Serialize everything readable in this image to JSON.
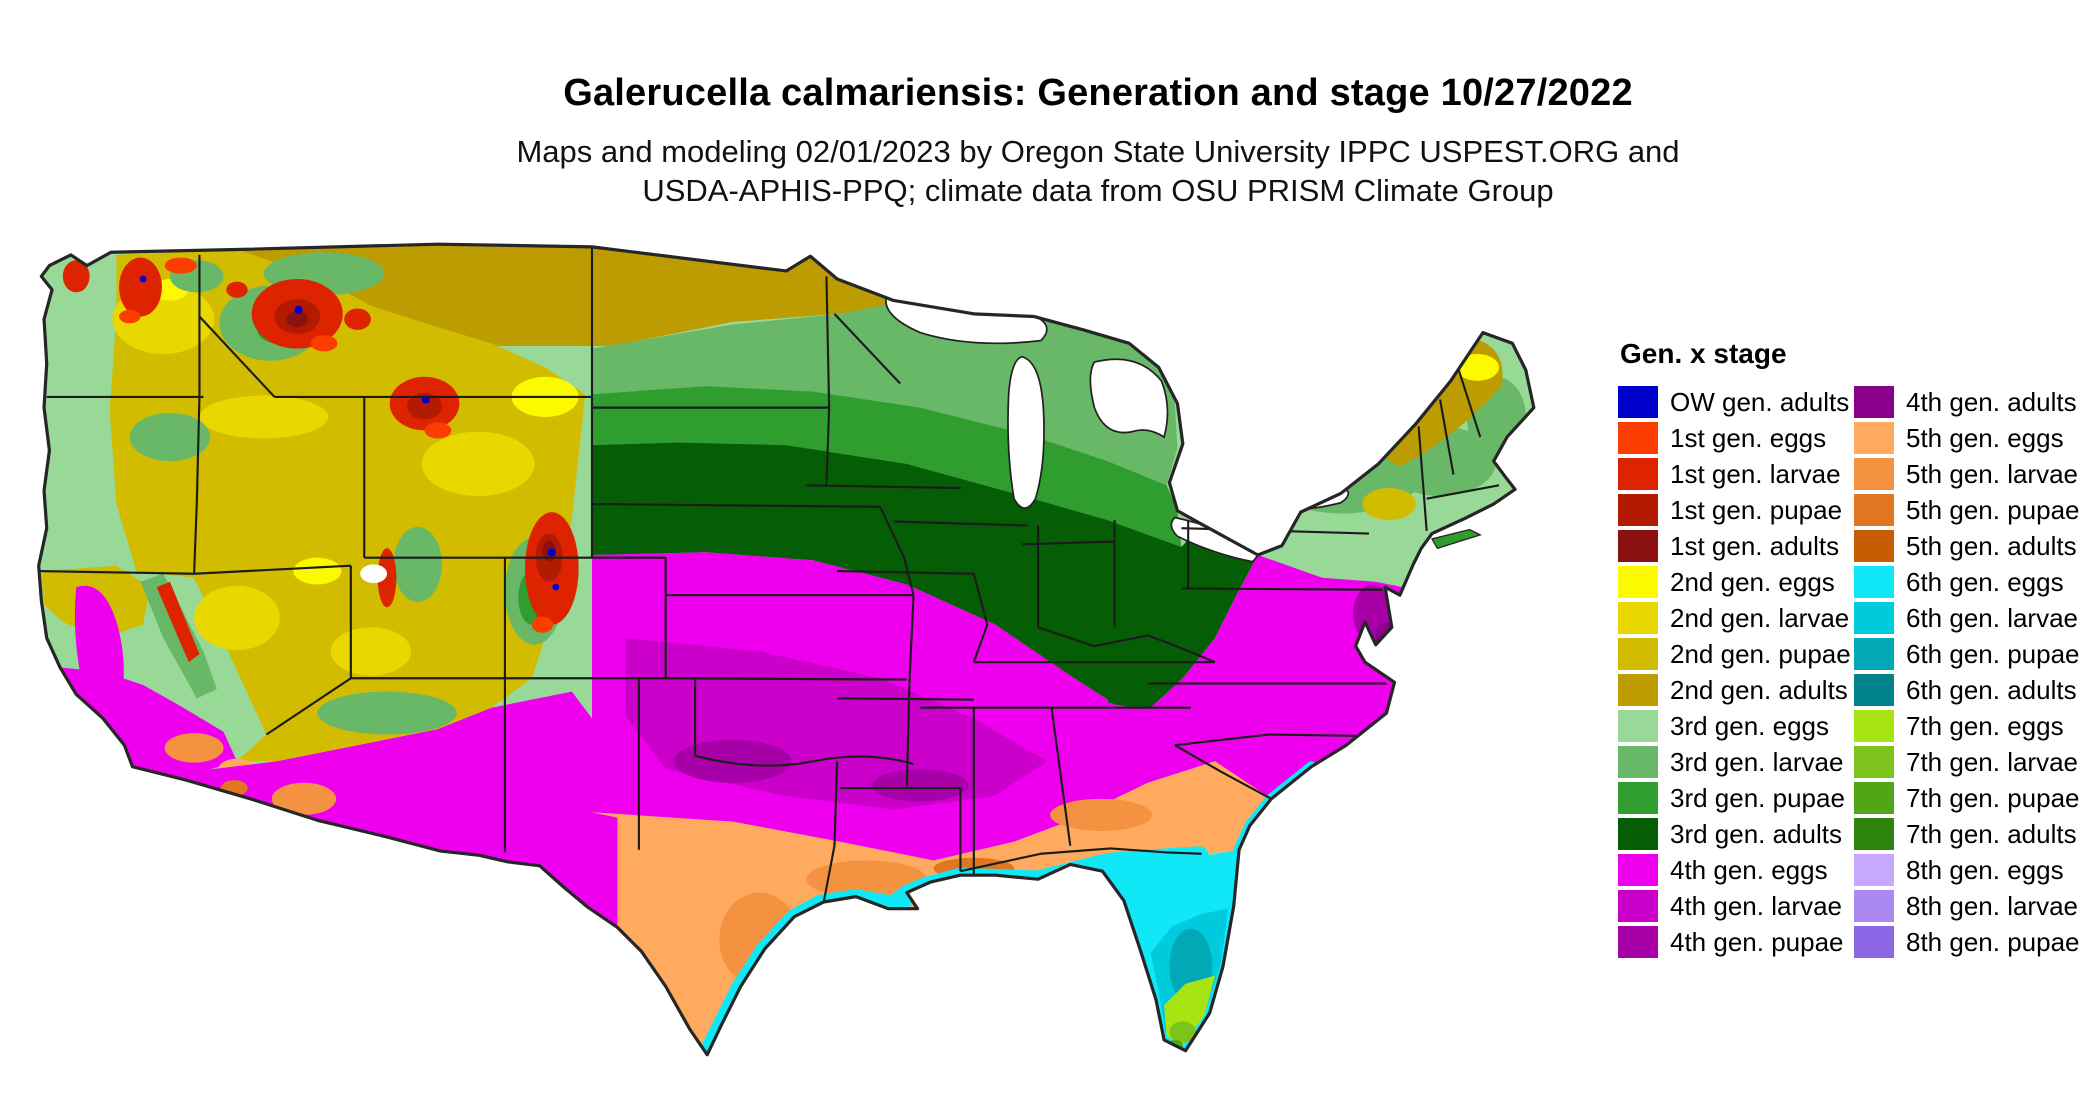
{
  "header": {
    "title": "Galerucella calmariensis: Generation and stage 10/27/2022",
    "subtitle_line1": "Maps and modeling 02/01/2023 by Oregon State University IPPC USPEST.ORG and",
    "subtitle_line2": "USDA-APHIS-PPQ; climate data from OSU PRISM Climate Group"
  },
  "legend": {
    "title": "Gen. x stage",
    "columns": [
      {
        "entries": [
          {
            "id": "ow_adults",
            "label": "OW gen. adults",
            "color": "#0000cc"
          },
          {
            "id": "g1_eggs",
            "label": "1st gen. eggs",
            "color": "#fb3d00"
          },
          {
            "id": "g1_larvae",
            "label": "1st gen. larvae",
            "color": "#dd2300"
          },
          {
            "id": "g1_pupae",
            "label": "1st gen. pupae",
            "color": "#b21b00"
          },
          {
            "id": "g1_adults",
            "label": "1st gen. adults",
            "color": "#8c1111"
          },
          {
            "id": "g2_eggs",
            "label": "2nd gen. eggs",
            "color": "#fdf900"
          },
          {
            "id": "g2_larvae",
            "label": "2nd gen. larvae",
            "color": "#e8d800"
          },
          {
            "id": "g2_pupae",
            "label": "2nd gen. pupae",
            "color": "#d2bc00"
          },
          {
            "id": "g2_adults",
            "label": "2nd gen. adults",
            "color": "#bc9c00"
          },
          {
            "id": "g3_eggs",
            "label": "3rd gen. eggs",
            "color": "#98d998"
          },
          {
            "id": "g3_larvae",
            "label": "3rd gen. larvae",
            "color": "#68b868"
          },
          {
            "id": "g3_pupae",
            "label": "3rd gen. pupae",
            "color": "#2f9e2f"
          },
          {
            "id": "g3_adults",
            "label": "3rd gen. adults",
            "color": "#055e05"
          },
          {
            "id": "g4_eggs",
            "label": "4th gen. eggs",
            "color": "#ee00ee"
          },
          {
            "id": "g4_larvae",
            "label": "4th gen. larvae",
            "color": "#cb00cb"
          },
          {
            "id": "g4_pupae",
            "label": "4th gen. pupae",
            "color": "#a800a8"
          }
        ]
      },
      {
        "entries": [
          {
            "id": "g4_adults",
            "label": "4th gen. adults",
            "color": "#8a008a"
          },
          {
            "id": "g5_eggs",
            "label": "5th gen. eggs",
            "color": "#ffaa5e"
          },
          {
            "id": "g5_larvae",
            "label": "5th gen. larvae",
            "color": "#f49242"
          },
          {
            "id": "g5_pupae",
            "label": "5th gen. pupae",
            "color": "#e07620"
          },
          {
            "id": "g5_adults",
            "label": "5th gen. adults",
            "color": "#c65c04"
          },
          {
            "id": "g6_eggs",
            "label": "6th gen. eggs",
            "color": "#10e8f8"
          },
          {
            "id": "g6_larvae",
            "label": "6th gen. larvae",
            "color": "#00cbdd"
          },
          {
            "id": "g6_pupae",
            "label": "6th gen. pupae",
            "color": "#00a9b5"
          },
          {
            "id": "g6_adults",
            "label": "6th gen. adults",
            "color": "#00838d"
          },
          {
            "id": "g7_eggs",
            "label": "7th gen. eggs",
            "color": "#a8e412"
          },
          {
            "id": "g7_larvae",
            "label": "7th gen. larvae",
            "color": "#7cc41c"
          },
          {
            "id": "g7_pupae",
            "label": "7th gen. pupae",
            "color": "#50a614"
          },
          {
            "id": "g7_adults",
            "label": "7th gen. adults",
            "color": "#2e840e"
          },
          {
            "id": "g8_eggs",
            "label": "8th gen. eggs",
            "color": "#c7a8fc"
          },
          {
            "id": "g8_larvae",
            "label": "8th gen. larvae",
            "color": "#ab88f2"
          },
          {
            "id": "g8_pupae",
            "label": "8th gen. pupae",
            "color": "#8d67e6"
          }
        ]
      }
    ]
  },
  "map": {
    "description": "Contiguous United States raster map colored by generation and life stage",
    "state_border_color": "#1c1c1c",
    "outline_color": "#262626",
    "water_color": "#ffffff"
  }
}
